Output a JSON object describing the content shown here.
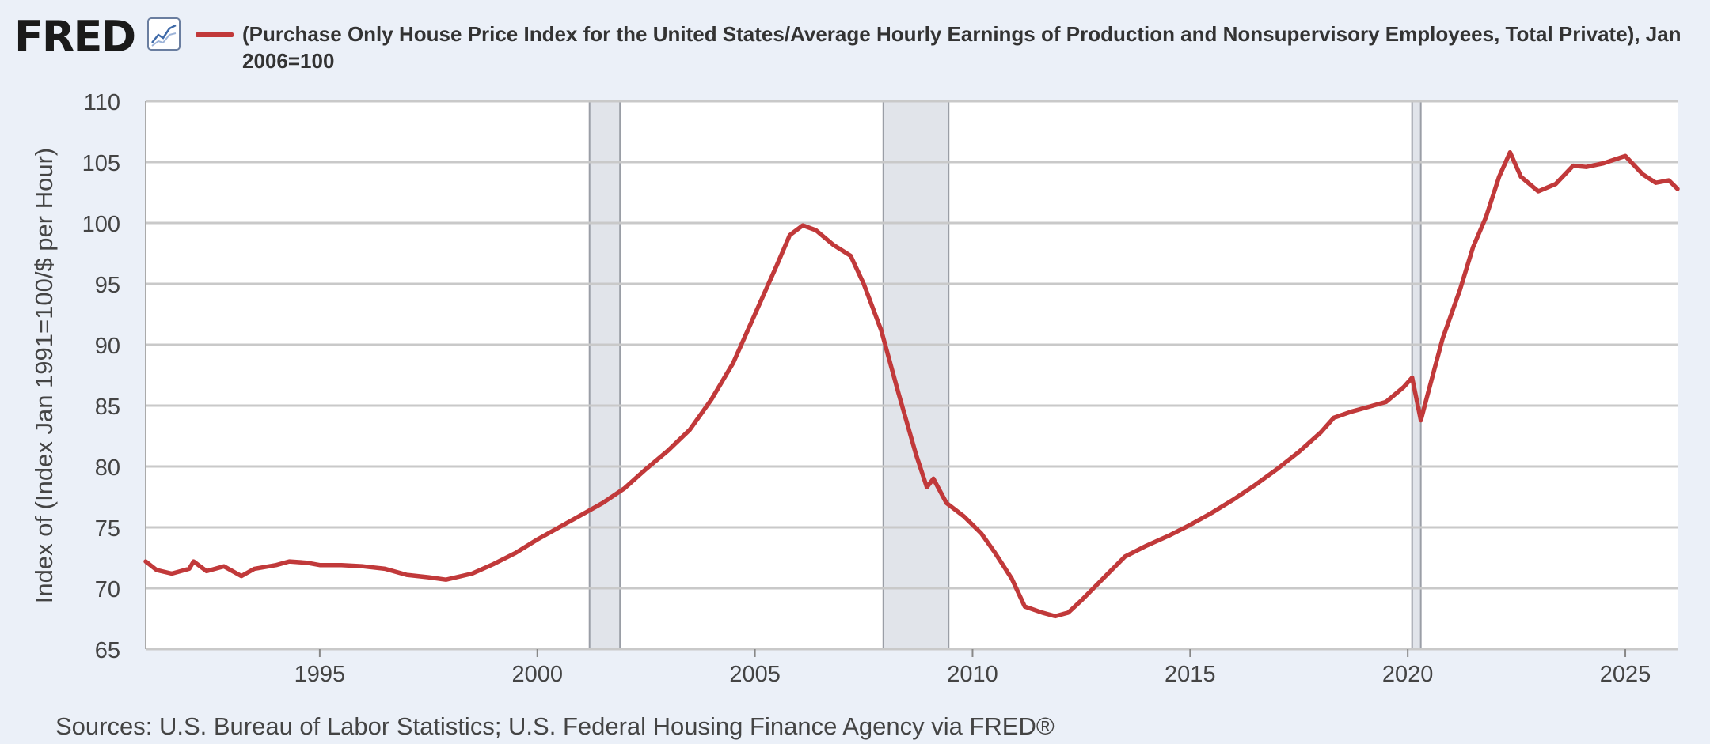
{
  "header": {
    "logo_text": "FRED",
    "logo_icon": "line-graph-icon",
    "legend_text": "(Purchase Only House Price Index for the United States/Average Hourly Earnings of Production and Nonsupervisory Employees, Total Private), Jan 2006=100",
    "legend_color": "#c1393a"
  },
  "footer": {
    "source": "Sources: U.S. Bureau of Labor Statistics; U.S. Federal Housing Finance Agency via FRED®"
  },
  "chart_data": {
    "type": "line",
    "title": "",
    "ylabel": "Index of (Index Jan 1991=100/$ per Hour)",
    "xlabel": "",
    "xlim": [
      1991.0,
      2026.2
    ],
    "ylim": [
      65,
      110
    ],
    "y_ticks": [
      65,
      70,
      75,
      80,
      85,
      90,
      95,
      100,
      105,
      110
    ],
    "x_ticks": [
      1995,
      2000,
      2005,
      2010,
      2015,
      2020,
      2025
    ],
    "grid": "horizontal",
    "recessions": [
      [
        2001.2,
        2001.9
      ],
      [
        2007.95,
        2009.45
      ],
      [
        2020.1,
        2020.3
      ]
    ],
    "series": [
      {
        "color": "#c1393a",
        "points": [
          [
            1991.0,
            72.2
          ],
          [
            1991.25,
            71.5
          ],
          [
            1991.6,
            71.2
          ],
          [
            1992.0,
            71.6
          ],
          [
            1992.1,
            72.2
          ],
          [
            1992.4,
            71.4
          ],
          [
            1992.8,
            71.8
          ],
          [
            1993.2,
            71.0
          ],
          [
            1993.5,
            71.6
          ],
          [
            1994.0,
            71.9
          ],
          [
            1994.3,
            72.2
          ],
          [
            1994.7,
            72.1
          ],
          [
            1995.0,
            71.9
          ],
          [
            1995.5,
            71.9
          ],
          [
            1996.0,
            71.8
          ],
          [
            1996.5,
            71.6
          ],
          [
            1997.0,
            71.1
          ],
          [
            1997.5,
            70.9
          ],
          [
            1997.9,
            70.7
          ],
          [
            1998.5,
            71.2
          ],
          [
            1999.0,
            72.0
          ],
          [
            1999.5,
            72.9
          ],
          [
            2000.0,
            74.0
          ],
          [
            2000.5,
            75.0
          ],
          [
            2001.0,
            76.0
          ],
          [
            2001.5,
            77.0
          ],
          [
            2002.0,
            78.2
          ],
          [
            2002.5,
            79.8
          ],
          [
            2003.0,
            81.3
          ],
          [
            2003.5,
            83.0
          ],
          [
            2004.0,
            85.5
          ],
          [
            2004.5,
            88.5
          ],
          [
            2005.0,
            92.5
          ],
          [
            2005.5,
            96.5
          ],
          [
            2005.8,
            99.0
          ],
          [
            2006.1,
            99.8
          ],
          [
            2006.4,
            99.4
          ],
          [
            2006.8,
            98.2
          ],
          [
            2007.2,
            97.3
          ],
          [
            2007.5,
            95.0
          ],
          [
            2007.9,
            91.2
          ],
          [
            2008.3,
            86.0
          ],
          [
            2008.7,
            81.0
          ],
          [
            2008.95,
            78.3
          ],
          [
            2009.1,
            79.0
          ],
          [
            2009.4,
            77.0
          ],
          [
            2009.8,
            75.9
          ],
          [
            2010.2,
            74.5
          ],
          [
            2010.5,
            73.0
          ],
          [
            2010.9,
            70.8
          ],
          [
            2011.2,
            68.5
          ],
          [
            2011.6,
            68.0
          ],
          [
            2011.9,
            67.7
          ],
          [
            2012.2,
            68.0
          ],
          [
            2012.5,
            69.0
          ],
          [
            2013.0,
            70.8
          ],
          [
            2013.5,
            72.6
          ],
          [
            2014.0,
            73.5
          ],
          [
            2014.5,
            74.3
          ],
          [
            2015.0,
            75.2
          ],
          [
            2015.5,
            76.2
          ],
          [
            2016.0,
            77.3
          ],
          [
            2016.5,
            78.5
          ],
          [
            2017.0,
            79.8
          ],
          [
            2017.5,
            81.2
          ],
          [
            2018.0,
            82.8
          ],
          [
            2018.3,
            84.0
          ],
          [
            2018.7,
            84.5
          ],
          [
            2019.0,
            84.8
          ],
          [
            2019.5,
            85.3
          ],
          [
            2019.9,
            86.5
          ],
          [
            2020.1,
            87.3
          ],
          [
            2020.3,
            83.8
          ],
          [
            2020.5,
            86.5
          ],
          [
            2020.8,
            90.5
          ],
          [
            2021.2,
            94.5
          ],
          [
            2021.5,
            98.0
          ],
          [
            2021.8,
            100.5
          ],
          [
            2022.1,
            103.8
          ],
          [
            2022.35,
            105.8
          ],
          [
            2022.6,
            103.8
          ],
          [
            2023.0,
            102.6
          ],
          [
            2023.4,
            103.2
          ],
          [
            2023.8,
            104.7
          ],
          [
            2024.1,
            104.6
          ],
          [
            2024.5,
            104.9
          ],
          [
            2025.0,
            105.5
          ],
          [
            2025.4,
            104.0
          ],
          [
            2025.7,
            103.3
          ],
          [
            2026.0,
            103.5
          ],
          [
            2026.2,
            102.8
          ]
        ]
      }
    ]
  }
}
